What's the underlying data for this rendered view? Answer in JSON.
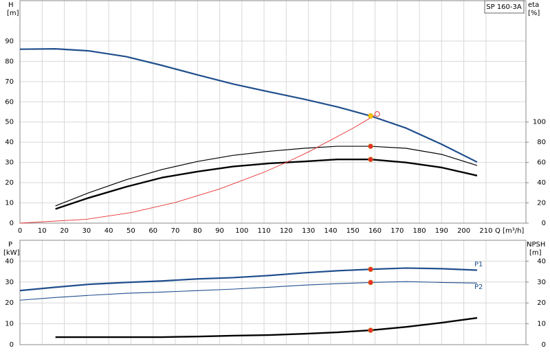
{
  "chart_data": [
    {
      "type": "line",
      "title": "SP 160-3A",
      "x_label": "Q [m³/h]",
      "y_label": "H",
      "y_unit": "[m]",
      "y2_label": "eta",
      "y2_unit": "[%]",
      "xlim": [
        0,
        228
      ],
      "xticks": [
        0,
        10,
        20,
        30,
        40,
        50,
        60,
        70,
        80,
        90,
        100,
        110,
        120,
        130,
        140,
        150,
        160,
        170,
        180,
        190,
        200,
        210
      ],
      "ylim": [
        0,
        110
      ],
      "yticks": [
        0,
        10,
        20,
        30,
        40,
        50,
        60,
        70,
        80,
        90
      ],
      "y2lim": [
        0,
        220
      ],
      "y2ticks": [
        0,
        20,
        40,
        60,
        80,
        100
      ],
      "grid": true,
      "series": [
        {
          "color": "#1f4e8c",
          "line_width": 2.2,
          "x": [
            0,
            16,
            31,
            48,
            64,
            80,
            96,
            112,
            128,
            143,
            158,
            174,
            190,
            206
          ],
          "values": [
            86,
            86.2,
            85.2,
            82.3,
            78,
            73.3,
            68.8,
            65,
            61.3,
            57.5,
            53,
            47,
            39,
            30.2
          ]
        },
        {
          "color": "#000000",
          "line_width": 1.2,
          "axis": "y2",
          "x": [
            16,
            31,
            48,
            64,
            80,
            96,
            112,
            128,
            143,
            158,
            174,
            190,
            206
          ],
          "values": [
            17,
            30,
            43,
            53,
            61,
            67,
            71,
            74,
            76,
            76,
            74,
            68,
            57
          ]
        },
        {
          "color": "#000000",
          "line_width": 2.4,
          "axis": "y2",
          "x": [
            16,
            31,
            48,
            64,
            80,
            96,
            112,
            128,
            143,
            158,
            174,
            190,
            206
          ],
          "values": [
            14,
            25,
            36,
            45,
            51,
            56,
            59,
            61,
            63,
            63,
            60,
            55,
            47
          ]
        },
        {
          "color": "#e83030",
          "line_width": 0.9,
          "x": [
            0,
            30,
            50,
            70,
            90,
            110,
            120,
            130,
            150,
            161
          ],
          "values": [
            0,
            1.9,
            5.2,
            10.2,
            16.9,
            25.2,
            30,
            35.2,
            46.9,
            54
          ]
        }
      ],
      "points": [
        {
          "x": 158,
          "y": 53,
          "color": "#f5c400",
          "filled": true
        },
        {
          "x": 161,
          "y": 54,
          "color": "#e83030",
          "filled": false
        },
        {
          "x": 158,
          "y": 76,
          "axis": "y2",
          "color": "#e83030",
          "filled": true
        },
        {
          "x": 158,
          "y": 63,
          "axis": "y2",
          "color": "#e83030",
          "filled": true
        }
      ]
    },
    {
      "type": "line",
      "y_label": "P",
      "y_unit": "[kW]",
      "y2_label": "NPSH",
      "y2_unit": "[m]",
      "xlim": [
        0,
        228
      ],
      "ylim": [
        0,
        50
      ],
      "yticks": [
        0,
        10,
        20,
        30,
        40
      ],
      "y2lim": [
        0,
        50
      ],
      "y2ticks": [
        0,
        10,
        20,
        30,
        40
      ],
      "grid": true,
      "series": [
        {
          "name": "P1",
          "color": "#1f4e8c",
          "line_width": 2.2,
          "x": [
            0,
            16,
            31,
            48,
            64,
            80,
            96,
            112,
            128,
            143,
            158,
            174,
            190,
            206
          ],
          "values": [
            25.9,
            27.5,
            28.9,
            29.8,
            30.5,
            31.5,
            32.1,
            33.1,
            34.4,
            35.4,
            36.1,
            36.7,
            36.4,
            35.7
          ]
        },
        {
          "name": "P2",
          "color": "#1f4e8c",
          "line_width": 1.1,
          "x": [
            0,
            16,
            31,
            48,
            64,
            80,
            96,
            112,
            128,
            143,
            158,
            174,
            190,
            206
          ],
          "values": [
            21.3,
            22.6,
            23.6,
            24.6,
            25.2,
            25.9,
            26.6,
            27.5,
            28.5,
            29.2,
            29.8,
            30.2,
            29.8,
            29.5
          ]
        },
        {
          "color": "#000000",
          "line_width": 2.4,
          "axis": "y2",
          "x": [
            16,
            31,
            48,
            64,
            80,
            96,
            112,
            128,
            143,
            158,
            174,
            190,
            206
          ],
          "values": [
            3.6,
            3.6,
            3.6,
            3.6,
            3.9,
            4.3,
            4.6,
            5.2,
            5.9,
            6.9,
            8.5,
            10.5,
            12.8
          ]
        }
      ],
      "points": [
        {
          "x": 158,
          "y": 36.1,
          "color": "#e83030",
          "filled": true
        },
        {
          "x": 158,
          "y": 29.8,
          "color": "#e83030",
          "filled": true
        },
        {
          "x": 158,
          "y": 6.9,
          "axis": "y2",
          "color": "#e83030",
          "filled": true
        }
      ]
    }
  ]
}
